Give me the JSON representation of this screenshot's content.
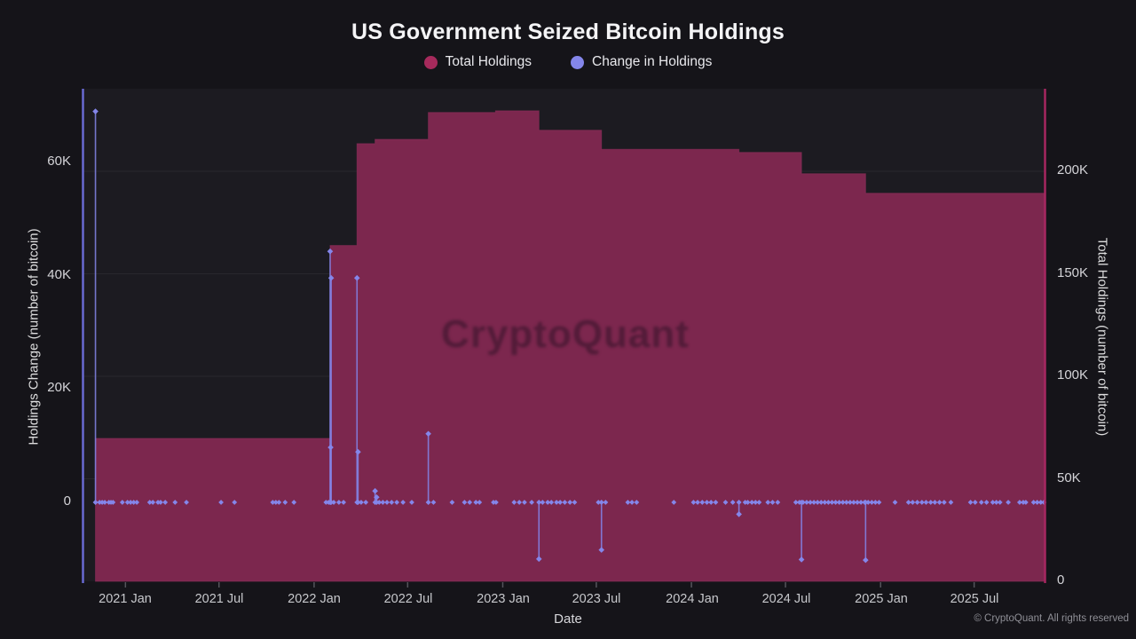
{
  "title": "US Government Seized Bitcoin Holdings",
  "legend": {
    "items": [
      {
        "label": "Total Holdings",
        "color": "#a62a5c"
      },
      {
        "label": "Change in Holdings",
        "color": "#8486ea"
      }
    ]
  },
  "watermark": "CryptoQuant",
  "footer": {
    "copyright": "© CryptoQuant. All rights reserved"
  },
  "colors": {
    "background": "#151419",
    "plot_background": "#1c1b21",
    "area_fill": "#7c274e",
    "area_edge": "#93305e",
    "stem": "#8486ea",
    "left_spine": "#6b6cd8",
    "right_spine": "#aa2762",
    "gridline": "rgba(255,255,255,0.055)",
    "tick_text": "#d4d4d8",
    "title_text": "#f4f4f6"
  },
  "chart_data": {
    "type": "area",
    "subtype": "step-area with stem (lollipop) series, dual y-axes",
    "title": "US Government Seized Bitcoin Holdings",
    "xlabel": "Date",
    "domain": [
      "2020-10-10",
      "2025-11-16"
    ],
    "x_axis": {
      "label": "Date",
      "ticks": [
        "2021 Jan",
        "2021 Jul",
        "2022 Jan",
        "2022 Jul",
        "2023 Jan",
        "2023 Jul",
        "2024 Jan",
        "2024 Jul",
        "2025 Jan",
        "2025 Jul"
      ],
      "tick_dates": [
        "2021-01-01",
        "2021-07-01",
        "2022-01-01",
        "2022-07-01",
        "2023-01-01",
        "2023-07-01",
        "2024-01-01",
        "2024-07-01",
        "2025-01-01",
        "2025-07-01"
      ]
    },
    "left_axis": {
      "label": "Holdings Change (number of bitcoin)",
      "ticks": [
        "0",
        "20K",
        "40K",
        "60K"
      ],
      "tick_values": [
        0,
        20000,
        40000,
        60000
      ],
      "range": [
        -14000,
        73000
      ]
    },
    "right_axis": {
      "label": "Total Holdings (number of bitcoin)",
      "ticks": [
        "0",
        "50K",
        "100K",
        "150K",
        "200K"
      ],
      "tick_values": [
        0,
        50000,
        100000,
        150000,
        200000
      ],
      "range": [
        0,
        240000
      ],
      "gridline_values": [
        50000,
        100000,
        150000,
        200000
      ]
    },
    "series": [
      {
        "name": "Total Holdings",
        "axis": "right",
        "style": "step-area",
        "color": "#7c274e",
        "points": [
          {
            "date": "2020-11-04",
            "value": 69700
          },
          {
            "date": "2022-02-01",
            "value": 163800
          },
          {
            "date": "2022-03-25",
            "value": 213500
          },
          {
            "date": "2022-04-29",
            "value": 215600
          },
          {
            "date": "2022-08-10",
            "value": 228700
          },
          {
            "date": "2022-12-18",
            "value": 229500
          },
          {
            "date": "2023-03-12",
            "value": 220000
          },
          {
            "date": "2023-07-11",
            "value": 210700
          },
          {
            "date": "2024-04-02",
            "value": 209200
          },
          {
            "date": "2024-08-01",
            "value": 198800
          },
          {
            "date": "2024-12-03",
            "value": 189300
          },
          {
            "date": "2025-11-13",
            "value": 189300
          }
        ]
      },
      {
        "name": "Change in Holdings",
        "axis": "left",
        "style": "stem",
        "color": "#8486ea",
        "points": [
          {
            "date": "2020-11-04",
            "value": 69000
          },
          {
            "date": "2022-02-01",
            "value": 44300
          },
          {
            "date": "2022-02-03",
            "value": 39600
          },
          {
            "date": "2022-02-02",
            "value": 9700
          },
          {
            "date": "2022-03-25",
            "value": 39600
          },
          {
            "date": "2022-03-27",
            "value": 8900
          },
          {
            "date": "2022-04-29",
            "value": 2000
          },
          {
            "date": "2022-05-02",
            "value": 900
          },
          {
            "date": "2022-08-10",
            "value": 12100
          },
          {
            "date": "2023-03-12",
            "value": -10000
          },
          {
            "date": "2023-07-11",
            "value": -8400
          },
          {
            "date": "2024-04-02",
            "value": -2100
          },
          {
            "date": "2024-08-01",
            "value": -10100
          },
          {
            "date": "2024-12-03",
            "value": -10200
          }
        ],
        "zero_change_dates": [
          "2020-11-12",
          "2020-11-17",
          "2020-11-22",
          "2020-11-30",
          "2020-12-04",
          "2020-12-08",
          "2020-12-26",
          "2021-01-05",
          "2021-01-11",
          "2021-01-17",
          "2021-01-23",
          "2021-02-17",
          "2021-02-23",
          "2021-03-05",
          "2021-03-10",
          "2021-03-19",
          "2021-04-07",
          "2021-04-29",
          "2021-07-05",
          "2021-07-31",
          "2021-10-13",
          "2021-10-19",
          "2021-10-25",
          "2021-11-06",
          "2021-11-23",
          "2022-01-24",
          "2022-01-29",
          "2022-02-08",
          "2022-02-18",
          "2022-02-27",
          "2022-04-02",
          "2022-04-11",
          "2022-05-07",
          "2022-05-14",
          "2022-05-22",
          "2022-05-31",
          "2022-06-10",
          "2022-06-22",
          "2022-07-09",
          "2022-08-20",
          "2022-09-25",
          "2022-10-19",
          "2022-10-29",
          "2022-11-10",
          "2022-11-17",
          "2022-12-14",
          "2022-12-19",
          "2023-01-23",
          "2023-02-02",
          "2023-02-12",
          "2023-02-26",
          "2023-03-19",
          "2023-03-29",
          "2023-04-05",
          "2023-04-15",
          "2023-04-22",
          "2023-05-01",
          "2023-05-11",
          "2023-05-20",
          "2023-07-05",
          "2023-07-19",
          "2023-08-31",
          "2023-09-08",
          "2023-09-17",
          "2023-11-28",
          "2024-01-05",
          "2024-01-13",
          "2024-01-22",
          "2024-01-31",
          "2024-02-08",
          "2024-02-17",
          "2024-03-07",
          "2024-03-21",
          "2024-04-14",
          "2024-04-19",
          "2024-04-27",
          "2024-05-04",
          "2024-05-11",
          "2024-05-28",
          "2024-06-06",
          "2024-06-16",
          "2024-07-21",
          "2024-07-28",
          "2024-08-04",
          "2024-08-11",
          "2024-08-18",
          "2024-08-25",
          "2024-09-01",
          "2024-09-08",
          "2024-09-15",
          "2024-09-22",
          "2024-09-29",
          "2024-10-06",
          "2024-10-13",
          "2024-10-20",
          "2024-10-27",
          "2024-11-03",
          "2024-11-10",
          "2024-11-17",
          "2024-11-24",
          "2024-12-01",
          "2024-12-08",
          "2024-12-15",
          "2024-12-22",
          "2024-12-29",
          "2025-01-29",
          "2025-02-24",
          "2025-03-04",
          "2025-03-13",
          "2025-03-22",
          "2025-03-30",
          "2025-04-08",
          "2025-04-16",
          "2025-04-25",
          "2025-05-04",
          "2025-05-17",
          "2025-06-24",
          "2025-07-03",
          "2025-07-15",
          "2025-07-25",
          "2025-08-06",
          "2025-08-13",
          "2025-08-20",
          "2025-09-05",
          "2025-09-27",
          "2025-10-04",
          "2025-10-09",
          "2025-10-24",
          "2025-10-31",
          "2025-11-07",
          "2025-11-13"
        ]
      }
    ],
    "legend_position": "top-center",
    "grid": "horizontal-only"
  }
}
